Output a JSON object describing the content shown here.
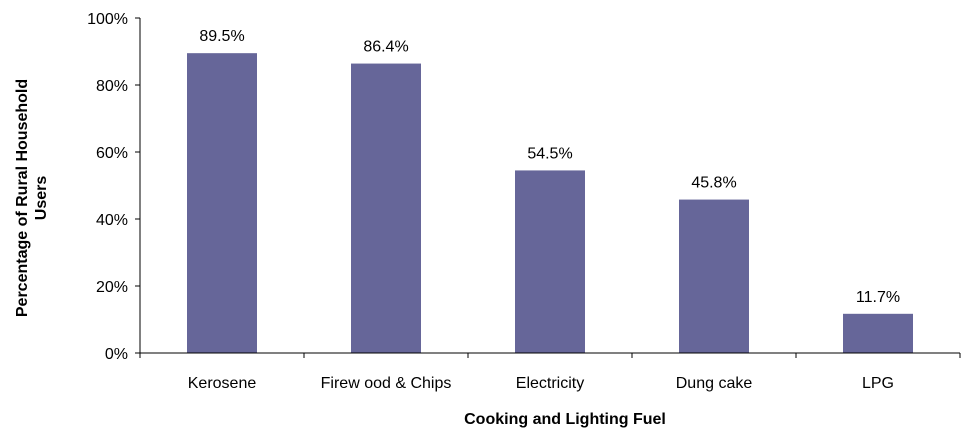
{
  "chart_data": {
    "type": "bar",
    "categories": [
      "Kerosene",
      "Firew ood & Chips",
      "Electricity",
      "Dung cake",
      "LPG"
    ],
    "values": [
      89.5,
      86.4,
      54.5,
      45.8,
      11.7
    ],
    "data_labels": [
      "89.5%",
      "86.4%",
      "54.5%",
      "45.8%",
      "11.7%"
    ],
    "xlabel": "Cooking and Lighting Fuel",
    "ylabel_lines": [
      "Percentage of Rural Household",
      "Users"
    ],
    "ylim": [
      0,
      100
    ],
    "yticks": [
      0,
      20,
      40,
      60,
      80,
      100
    ],
    "ytick_labels": [
      "0%",
      "20%",
      "40%",
      "60%",
      "80%",
      "100%"
    ],
    "bar_color": "#666699",
    "grid": false,
    "legend": "none"
  }
}
